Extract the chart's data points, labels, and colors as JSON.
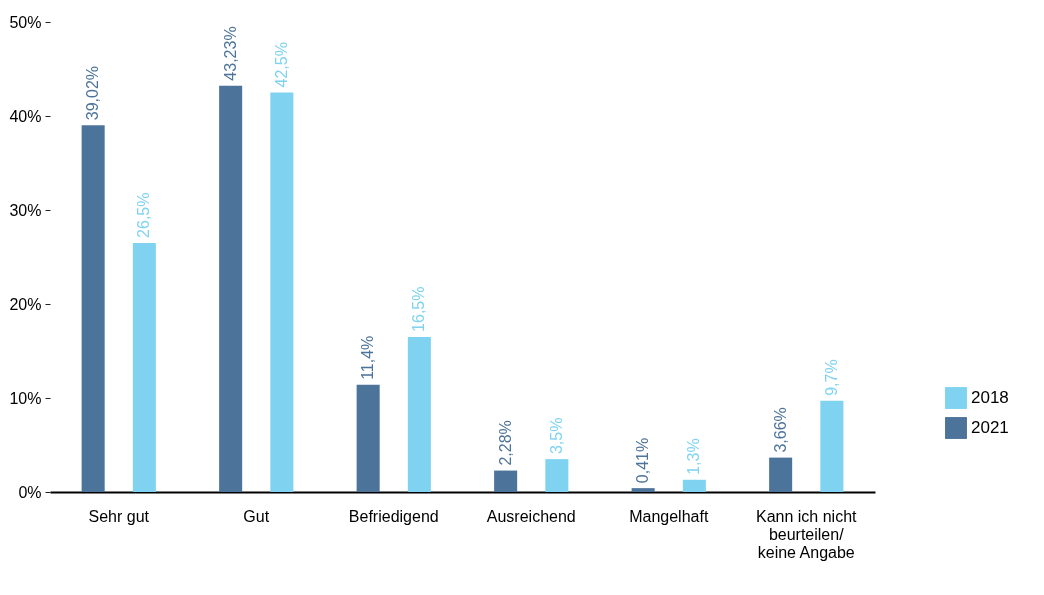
{
  "chart_data": {
    "type": "bar",
    "categories": [
      "Sehr gut",
      "Gut",
      "Befriedigend",
      "Ausreichend",
      "Mangelhaft",
      "Kann ich nicht beurteilen/ keine Angabe"
    ],
    "series": [
      {
        "name": "2021",
        "color": "#4c7399",
        "values": [
          39.02,
          43.23,
          11.4,
          2.28,
          0.41,
          3.66
        ],
        "value_labels": [
          "39,02%",
          "43,23%",
          "11,4%",
          "2,28%",
          "0,41%",
          "3,66%"
        ]
      },
      {
        "name": "2018",
        "color": "#7fd3f0",
        "values": [
          26.5,
          42.5,
          16.5,
          3.5,
          1.3,
          9.7
        ],
        "value_labels": [
          "26,5%",
          "42,5%",
          "16,5%",
          "3,5%",
          "1,3%",
          "9,7%"
        ]
      }
    ],
    "ylim": [
      0,
      50
    ],
    "yticks": [
      {
        "value": 0,
        "label": "0%"
      },
      {
        "value": 10,
        "label": "10%"
      },
      {
        "value": 20,
        "label": "20%"
      },
      {
        "value": 30,
        "label": "30%"
      },
      {
        "value": 40,
        "label": "40%"
      },
      {
        "value": 50,
        "label": "50%"
      }
    ],
    "grid": false,
    "legend": "right"
  }
}
